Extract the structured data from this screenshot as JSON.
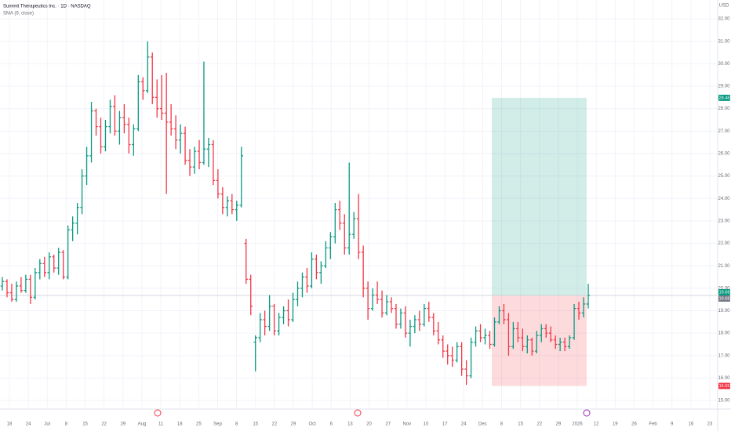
{
  "chart_data": {
    "type": "ohlc",
    "title": "Summit Therapeutics Inc. · 1D · NASDAQ",
    "subtitle": "SMA (9, close)",
    "currency": "USD",
    "up_color": "#089981",
    "down_color": "#f23645",
    "ylim": [
      14.62,
      32.84
    ],
    "yticks": [
      {
        "value": 15,
        "label": "15.00"
      },
      {
        "value": 16,
        "label": "16.00"
      },
      {
        "value": 17,
        "label": "17.00"
      },
      {
        "value": 18,
        "label": "18.00"
      },
      {
        "value": 19,
        "label": "19.00"
      },
      {
        "value": 20,
        "label": "20.00"
      },
      {
        "value": 21,
        "label": "21.00"
      },
      {
        "value": 22,
        "label": "22.00"
      },
      {
        "value": 23,
        "label": "23.00"
      },
      {
        "value": 24,
        "label": "24.00"
      },
      {
        "value": 25,
        "label": "25.00"
      },
      {
        "value": 26,
        "label": "26.00"
      },
      {
        "value": 27,
        "label": "27.00"
      },
      {
        "value": 28,
        "label": "28.00"
      },
      {
        "value": 29,
        "label": "29.00"
      },
      {
        "value": 30,
        "label": "30.00"
      },
      {
        "value": 31,
        "label": "31.00"
      },
      {
        "value": 32,
        "label": "32.00"
      }
    ],
    "xticks": [
      "18",
      "24",
      "Jul",
      "8",
      "15",
      "22",
      "29",
      "Aug",
      "11",
      "18",
      "25",
      "Sep",
      "8",
      "15",
      "22",
      "29",
      "Oct",
      "6",
      "13",
      "20",
      "27",
      "Nov",
      "10",
      "17",
      "24",
      "Dec",
      "8",
      "15",
      "22",
      "29",
      "2026",
      "12",
      "19",
      "26",
      "Feb",
      "9",
      "16",
      "23"
    ],
    "grid": true,
    "position": {
      "target": 28.48,
      "entry": 19.68,
      "stop": 15.65,
      "target_color": "#089981",
      "stop_color": "#f23645"
    },
    "ohlc": [
      [
        20.1,
        20.5,
        19.9,
        20.3
      ],
      [
        20.3,
        20.4,
        19.6,
        19.8
      ],
      [
        19.8,
        20.2,
        19.4,
        19.5
      ],
      [
        19.5,
        20.3,
        19.4,
        20.1
      ],
      [
        20.1,
        20.5,
        19.8,
        19.9
      ],
      [
        19.9,
        20.6,
        19.8,
        20.4
      ],
      [
        20.4,
        20.6,
        19.3,
        19.6
      ],
      [
        19.6,
        20.9,
        19.5,
        20.7
      ],
      [
        20.7,
        21.3,
        20.4,
        21.1
      ],
      [
        21.1,
        21.4,
        20.5,
        20.7
      ],
      [
        20.7,
        21.6,
        20.4,
        21.4
      ],
      [
        21.4,
        21.5,
        20.7,
        20.9
      ],
      [
        20.9,
        21.8,
        20.6,
        21.6
      ],
      [
        21.6,
        21.7,
        20.4,
        20.5
      ],
      [
        20.5,
        22.8,
        20.4,
        22.6
      ],
      [
        22.6,
        23.2,
        22.1,
        22.9
      ],
      [
        22.9,
        23.8,
        22.4,
        23.6
      ],
      [
        23.6,
        25.3,
        23.3,
        25.0
      ],
      [
        25.0,
        26.3,
        24.6,
        25.9
      ],
      [
        25.9,
        28.3,
        25.6,
        27.9
      ],
      [
        27.9,
        28.0,
        26.8,
        27.2
      ],
      [
        27.2,
        27.6,
        26.0,
        26.3
      ],
      [
        26.3,
        27.5,
        26.1,
        27.2
      ],
      [
        27.2,
        28.4,
        26.9,
        28.1
      ],
      [
        28.1,
        28.6,
        26.8,
        27.0
      ],
      [
        27.0,
        27.9,
        26.4,
        27.6
      ],
      [
        27.6,
        28.2,
        26.9,
        27.3
      ],
      [
        27.3,
        27.6,
        26.0,
        26.4
      ],
      [
        26.4,
        27.3,
        25.9,
        27.1
      ],
      [
        27.1,
        29.5,
        27.0,
        29.2
      ],
      [
        29.2,
        29.4,
        28.4,
        28.8
      ],
      [
        28.8,
        31.0,
        28.7,
        30.3
      ],
      [
        30.3,
        30.5,
        28.2,
        28.5
      ],
      [
        28.5,
        29.3,
        27.6,
        28.0
      ],
      [
        28.0,
        29.5,
        27.5,
        27.8
      ],
      [
        27.8,
        29.6,
        24.2,
        27.4
      ],
      [
        27.4,
        28.2,
        26.8,
        27.1
      ],
      [
        27.1,
        27.7,
        26.2,
        26.6
      ],
      [
        26.6,
        27.3,
        26.0,
        26.9
      ],
      [
        26.9,
        27.2,
        25.5,
        25.7
      ],
      [
        25.7,
        26.2,
        25.0,
        25.4
      ],
      [
        25.4,
        26.3,
        25.1,
        26.1
      ],
      [
        26.1,
        26.6,
        25.3,
        25.6
      ],
      [
        25.6,
        30.1,
        25.5,
        26.2
      ],
      [
        26.2,
        26.7,
        25.4,
        26.4
      ],
      [
        26.4,
        26.6,
        24.6,
        24.8
      ],
      [
        24.8,
        25.3,
        24.0,
        24.2
      ],
      [
        24.2,
        24.5,
        23.3,
        23.6
      ],
      [
        23.6,
        24.1,
        23.2,
        23.9
      ],
      [
        23.9,
        24.2,
        23.3,
        23.5
      ],
      [
        23.5,
        23.9,
        23.0,
        23.7
      ],
      [
        23.7,
        26.3,
        23.6,
        25.9
      ],
      [
        22.0,
        22.2,
        20.2,
        20.4
      ],
      [
        20.4,
        20.6,
        18.8,
        19.2
      ],
      [
        17.6,
        17.9,
        16.3,
        17.8
      ],
      [
        17.8,
        18.9,
        17.6,
        18.6
      ],
      [
        18.6,
        19.0,
        17.9,
        18.3
      ],
      [
        18.3,
        19.7,
        18.1,
        19.2
      ],
      [
        19.2,
        19.3,
        17.9,
        18.1
      ],
      [
        18.1,
        18.9,
        17.9,
        18.7
      ],
      [
        18.7,
        19.2,
        18.4,
        19.0
      ],
      [
        19.0,
        19.5,
        18.3,
        18.6
      ],
      [
        18.6,
        19.8,
        18.5,
        19.5
      ],
      [
        19.5,
        20.3,
        19.2,
        20.0
      ],
      [
        20.0,
        20.7,
        19.6,
        20.5
      ],
      [
        20.5,
        20.9,
        19.8,
        20.1
      ],
      [
        20.1,
        21.6,
        20.0,
        21.3
      ],
      [
        21.3,
        21.5,
        20.4,
        20.7
      ],
      [
        20.7,
        21.2,
        20.2,
        21.0
      ],
      [
        21.0,
        22.1,
        20.9,
        21.8
      ],
      [
        21.8,
        22.5,
        21.3,
        22.3
      ],
      [
        22.3,
        23.8,
        22.0,
        23.5
      ],
      [
        23.5,
        23.9,
        22.6,
        22.9
      ],
      [
        22.9,
        23.3,
        21.5,
        21.8
      ],
      [
        21.8,
        25.6,
        21.5,
        22.4
      ],
      [
        22.4,
        23.4,
        22.2,
        23.1
      ],
      [
        23.1,
        24.2,
        21.3,
        21.6
      ],
      [
        21.6,
        21.9,
        19.6,
        20.0
      ],
      [
        20.0,
        20.3,
        18.6,
        19.1
      ],
      [
        19.1,
        20.0,
        19.0,
        19.7
      ],
      [
        19.7,
        20.3,
        19.3,
        19.5
      ],
      [
        19.5,
        19.9,
        18.7,
        18.9
      ],
      [
        18.9,
        19.7,
        18.8,
        19.4
      ],
      [
        19.4,
        19.6,
        18.9,
        19.1
      ],
      [
        19.1,
        19.3,
        18.2,
        18.4
      ],
      [
        18.4,
        19.1,
        18.2,
        18.9
      ],
      [
        18.9,
        19.2,
        17.8,
        18.0
      ],
      [
        18.0,
        18.6,
        17.4,
        18.3
      ],
      [
        18.3,
        18.8,
        18.0,
        18.6
      ],
      [
        18.6,
        19.0,
        18.1,
        18.4
      ],
      [
        18.4,
        19.3,
        18.3,
        19.1
      ],
      [
        19.1,
        19.4,
        18.5,
        18.7
      ],
      [
        18.7,
        18.9,
        17.9,
        18.1
      ],
      [
        18.1,
        18.5,
        17.5,
        17.7
      ],
      [
        17.7,
        17.9,
        16.9,
        17.2
      ],
      [
        17.2,
        17.5,
        16.6,
        17.0
      ],
      [
        17.0,
        17.4,
        16.5,
        16.8
      ],
      [
        16.8,
        17.6,
        16.7,
        17.4
      ],
      [
        17.4,
        17.6,
        16.1,
        16.4
      ],
      [
        16.4,
        16.8,
        15.7,
        16.1
      ],
      [
        16.1,
        17.8,
        16.0,
        17.6
      ],
      [
        17.6,
        18.3,
        17.4,
        18.1
      ],
      [
        18.1,
        18.4,
        17.6,
        17.8
      ],
      [
        17.8,
        18.2,
        17.5,
        17.9
      ],
      [
        17.9,
        18.1,
        17.3,
        17.5
      ],
      [
        17.5,
        18.7,
        17.4,
        18.5
      ],
      [
        18.5,
        19.2,
        18.4,
        19.0
      ],
      [
        19.0,
        19.3,
        18.4,
        18.6
      ],
      [
        18.6,
        18.9,
        17.0,
        17.4
      ],
      [
        17.4,
        18.5,
        17.3,
        18.2
      ],
      [
        18.2,
        18.5,
        17.6,
        17.8
      ],
      [
        17.8,
        18.2,
        17.2,
        17.4
      ],
      [
        17.4,
        17.9,
        17.1,
        17.7
      ],
      [
        17.7,
        17.8,
        17.0,
        17.2
      ],
      [
        17.2,
        18.1,
        17.1,
        17.9
      ],
      [
        17.9,
        18.4,
        17.6,
        18.2
      ],
      [
        18.2,
        18.4,
        17.8,
        18.0
      ],
      [
        18.0,
        18.3,
        17.6,
        17.7
      ],
      [
        17.7,
        17.9,
        17.3,
        17.5
      ],
      [
        17.5,
        17.8,
        17.2,
        17.6
      ],
      [
        17.6,
        17.8,
        17.2,
        17.4
      ],
      [
        17.4,
        17.9,
        17.3,
        17.8
      ],
      [
        17.8,
        19.3,
        17.7,
        19.1
      ],
      [
        19.1,
        19.4,
        18.6,
        18.9
      ],
      [
        18.9,
        19.6,
        18.7,
        19.3
      ],
      [
        19.3,
        20.2,
        19.1,
        19.68
      ]
    ]
  }
}
